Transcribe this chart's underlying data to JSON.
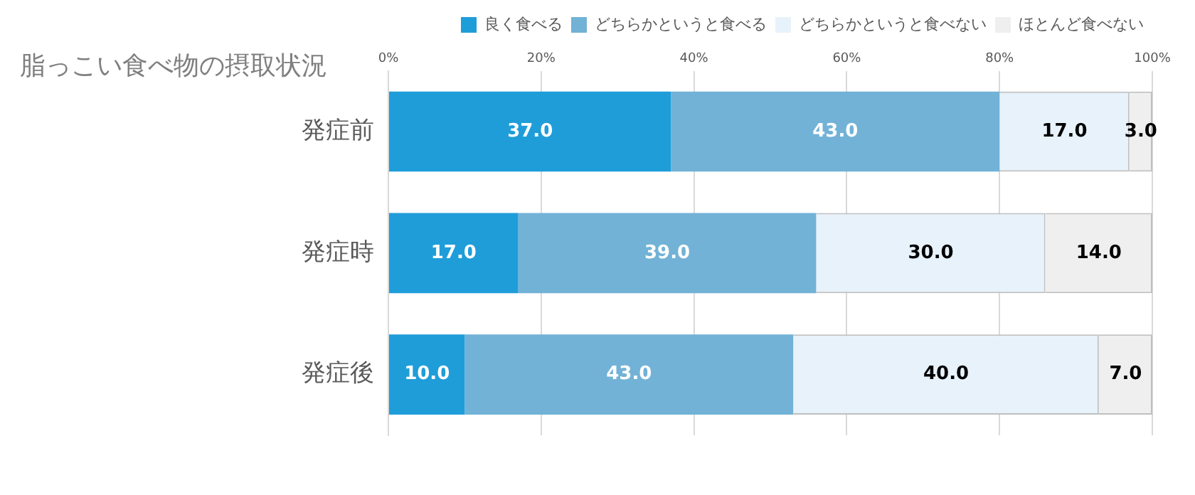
{
  "chart_data": {
    "type": "bar",
    "title": "脂っこい食べ物の摂取状況",
    "orientation": "horizontal",
    "stacked": true,
    "categories": [
      "発症前",
      "発症時",
      "発症後"
    ],
    "series": [
      {
        "name": "良く食べる",
        "color": "#1f9dd9",
        "values": [
          37,
          17,
          10
        ],
        "value_labels": [
          "37.0",
          "17.0",
          "10.0"
        ]
      },
      {
        "name": "どちらかというと食べる",
        "color": "#72b2d6",
        "values": [
          43,
          39,
          43
        ],
        "value_labels": [
          "43.0",
          "39.0",
          "43.0"
        ]
      },
      {
        "name": "どちらかというと食べない",
        "color": "#e7f2fb",
        "values": [
          17,
          30,
          40
        ],
        "value_labels": [
          "17.0",
          "30.0",
          "40.0"
        ]
      },
      {
        "name": "ほとんど食べない",
        "color": "#efefef",
        "values": [
          3,
          14,
          7
        ],
        "value_labels": [
          "3.0",
          "14.0",
          "7.0"
        ]
      }
    ],
    "xlim": [
      0,
      100
    ],
    "xticks": [
      {
        "value": 0,
        "label": "0%"
      },
      {
        "value": 20,
        "label": "20%"
      },
      {
        "value": 40,
        "label": "40%"
      },
      {
        "value": 60,
        "label": "60%"
      },
      {
        "value": 80,
        "label": "80%"
      },
      {
        "value": 100,
        "label": "100%"
      }
    ],
    "grid": "x",
    "legend": "top right"
  }
}
